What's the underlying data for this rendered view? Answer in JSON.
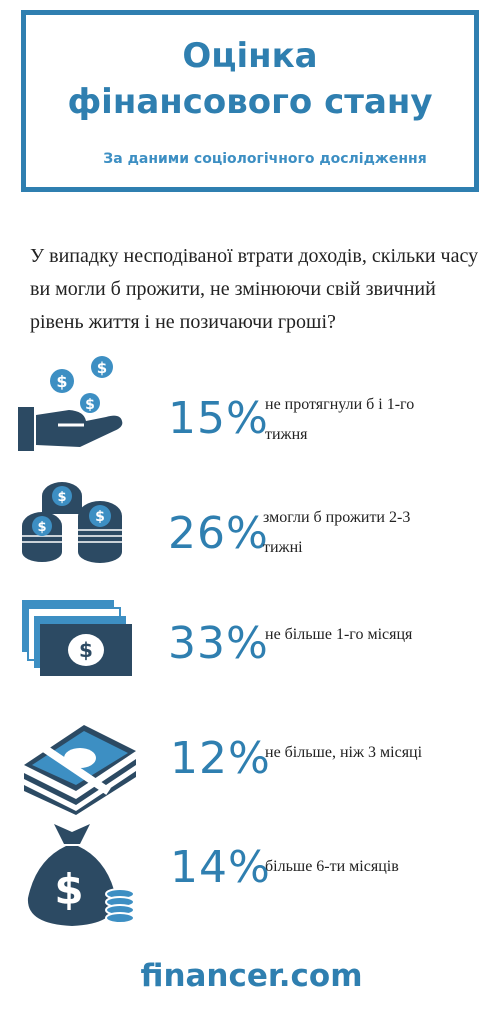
{
  "header": {
    "title_line1": "Оцінка",
    "title_line2": "фінансового стану",
    "subtitle": "За даними соціологічного дослідження"
  },
  "question": "У випадку несподіваної втрати доходів, скільки часу ви могли б прожити, не змінюючи свій звичний рівень життя і не позичаючи гроші?",
  "stats": [
    {
      "percent": "15%",
      "label_line1": "не протягнули б і 1-го",
      "label_line2": "тижня",
      "icon": "hand-coins-icon"
    },
    {
      "percent": "26%",
      "label_line1": "змогли б прожити 2-3",
      "label_line2": "тижні",
      "icon": "coin-stacks-icon"
    },
    {
      "percent": "33%",
      "label_line1": "не більше 1-го місяця",
      "label_line2": "",
      "icon": "banknotes-icon"
    },
    {
      "percent": "12%",
      "label_line1": "не більше, ніж 3 місяці",
      "label_line2": "",
      "icon": "cash-bundle-icon"
    },
    {
      "percent": "14%",
      "label_line1": "більше 6-ти місяців",
      "label_line2": "",
      "icon": "money-bag-icon"
    }
  ],
  "brand": "financer.com",
  "colors": {
    "accent": "#2f7fb0",
    "dark": "#2c4a63",
    "text": "#222222"
  }
}
